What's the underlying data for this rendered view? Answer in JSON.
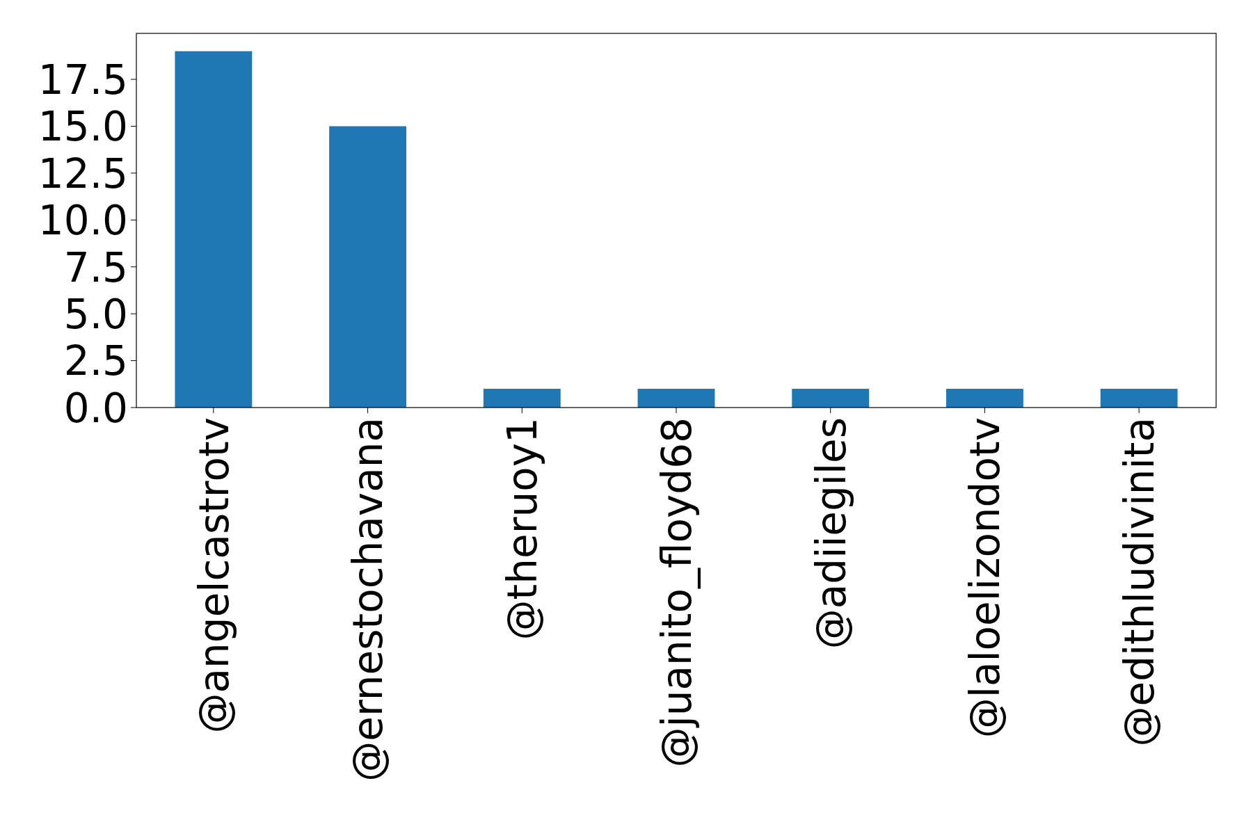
{
  "chart_data": {
    "type": "bar",
    "categories": [
      "@angelcastrotv",
      "@ernestochavana",
      "@theruoy1",
      "@juanito_floyd68",
      "@adiiegiles",
      "@laloelizondotv",
      "@edithludivinita"
    ],
    "values": [
      19,
      15,
      1,
      1,
      1,
      1,
      1
    ],
    "color": "#1f77b4",
    "ylim": [
      0,
      19.95
    ],
    "yticks": [
      {
        "value": 0,
        "label": "0.0"
      },
      {
        "value": 2.5,
        "label": "2.5"
      },
      {
        "value": 5,
        "label": "5.0"
      },
      {
        "value": 7.5,
        "label": "7.5"
      },
      {
        "value": 10,
        "label": "10.0"
      },
      {
        "value": 12.5,
        "label": "12.5"
      },
      {
        "value": 15,
        "label": "15.0"
      },
      {
        "value": 17.5,
        "label": "17.5"
      }
    ],
    "grid": false
  }
}
